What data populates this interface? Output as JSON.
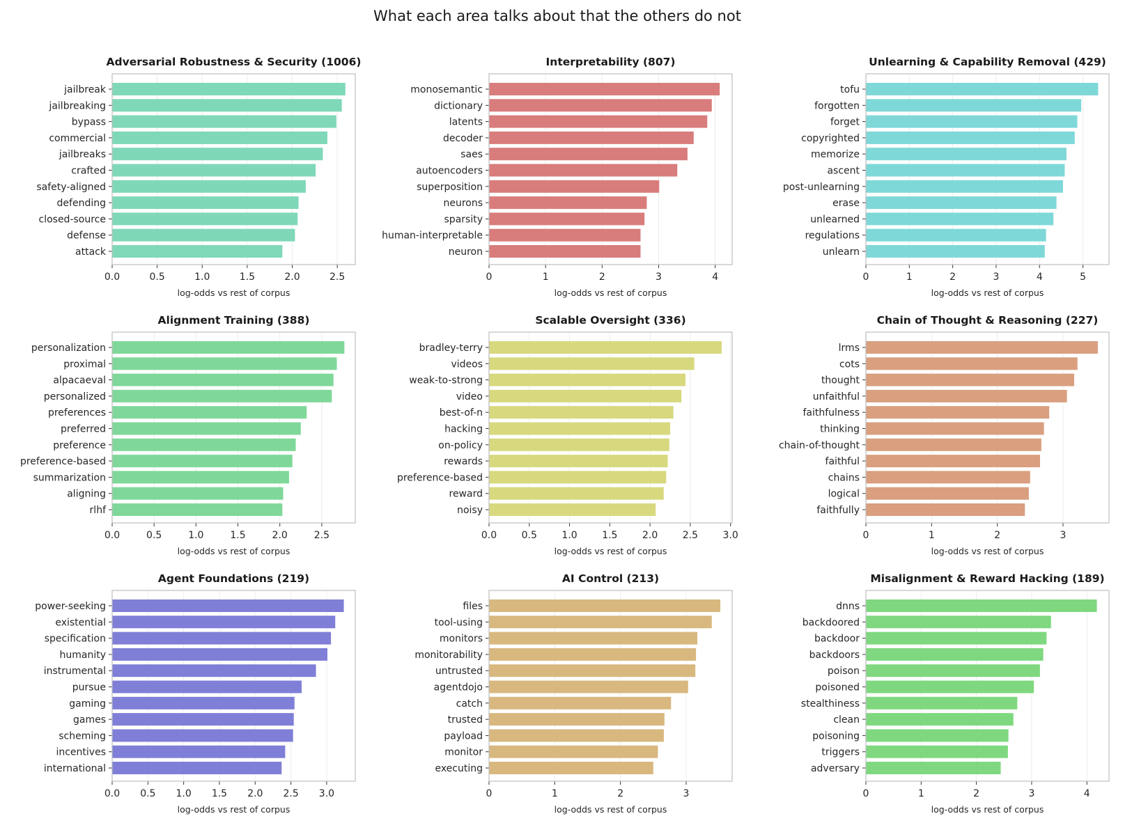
{
  "suptitle": "What each area talks about that the others do not",
  "chart_data": [
    {
      "type": "bar",
      "orientation": "horizontal",
      "title": "Adversarial Robustness & Security  (1006)",
      "xlabel": "log-odds vs rest of corpus",
      "color": "#7fd8b8",
      "xlim": [
        0,
        2.7
      ],
      "xticks": [
        0.0,
        0.5,
        1.0,
        1.5,
        2.0,
        2.5
      ],
      "tick_format": "0.0",
      "categories": [
        "jailbreak",
        "jailbreaking",
        "bypass",
        "commercial",
        "jailbreaks",
        "crafted",
        "safety-aligned",
        "defending",
        "closed-source",
        "defense",
        "attack"
      ],
      "values": [
        2.59,
        2.55,
        2.49,
        2.39,
        2.34,
        2.26,
        2.15,
        2.07,
        2.06,
        2.03,
        1.89
      ]
    },
    {
      "type": "bar",
      "orientation": "horizontal",
      "title": "Interpretability  (807)",
      "xlabel": "log-odds vs rest of corpus",
      "color": "#d97c7c",
      "xlim": [
        0,
        4.3
      ],
      "xticks": [
        0,
        1,
        2,
        3,
        4
      ],
      "tick_format": "0",
      "categories": [
        "monosemantic",
        "dictionary",
        "latents",
        "decoder",
        "saes",
        "autoencoders",
        "superposition",
        "neurons",
        "sparsity",
        "human-interpretable",
        "neuron"
      ],
      "values": [
        4.08,
        3.94,
        3.86,
        3.62,
        3.51,
        3.33,
        3.01,
        2.79,
        2.75,
        2.68,
        2.68
      ]
    },
    {
      "type": "bar",
      "orientation": "horizontal",
      "title": "Unlearning & Capability Removal  (429)",
      "xlabel": "log-odds vs rest of corpus",
      "color": "#7fd8d8",
      "xlim": [
        0,
        5.6
      ],
      "xticks": [
        0,
        1,
        2,
        3,
        4,
        5
      ],
      "tick_format": "0",
      "categories": [
        "tofu",
        "forgotten",
        "forget",
        "copyrighted",
        "memorize",
        "ascent",
        "post-unlearning",
        "erase",
        "unlearned",
        "regulations",
        "unlearn"
      ],
      "values": [
        5.35,
        4.96,
        4.87,
        4.81,
        4.62,
        4.58,
        4.54,
        4.39,
        4.32,
        4.15,
        4.12
      ]
    },
    {
      "type": "bar",
      "orientation": "horizontal",
      "title": "Alignment Training  (388)",
      "xlabel": "log-odds vs rest of corpus",
      "color": "#7fd89a",
      "xlim": [
        0,
        2.9
      ],
      "xticks": [
        0.0,
        0.5,
        1.0,
        1.5,
        2.0,
        2.5
      ],
      "tick_format": "0.0",
      "categories": [
        "personalization",
        "proximal",
        "alpacaeval",
        "personalized",
        "preferences",
        "preferred",
        "preference",
        "preference-based",
        "summarization",
        "aligning",
        "rlhf"
      ],
      "values": [
        2.77,
        2.68,
        2.64,
        2.62,
        2.32,
        2.25,
        2.19,
        2.15,
        2.11,
        2.04,
        2.03
      ]
    },
    {
      "type": "bar",
      "orientation": "horizontal",
      "title": "Scalable Oversight  (336)",
      "xlabel": "log-odds vs rest of corpus",
      "color": "#d8d87f",
      "xlim": [
        0,
        3.02
      ],
      "xticks": [
        0.0,
        0.5,
        1.0,
        1.5,
        2.0,
        2.5,
        3.0
      ],
      "tick_format": "0.0",
      "categories": [
        "bradley-terry",
        "videos",
        "weak-to-strong",
        "video",
        "best-of-n",
        "hacking",
        "on-policy",
        "rewards",
        "preference-based",
        "reward",
        "noisy"
      ],
      "values": [
        2.89,
        2.55,
        2.44,
        2.39,
        2.29,
        2.25,
        2.24,
        2.22,
        2.2,
        2.17,
        2.07
      ]
    },
    {
      "type": "bar",
      "orientation": "horizontal",
      "title": "Chain of Thought & Reasoning  (227)",
      "xlabel": "log-odds vs rest of corpus",
      "color": "#d99f7f",
      "xlim": [
        0,
        3.7
      ],
      "xticks": [
        0,
        1,
        2,
        3
      ],
      "tick_format": "0",
      "categories": [
        "lrms",
        "cots",
        "thought",
        "unfaithful",
        "faithfulness",
        "thinking",
        "chain-of-thought",
        "faithful",
        "chains",
        "logical",
        "faithfully"
      ],
      "values": [
        3.53,
        3.22,
        3.17,
        3.06,
        2.79,
        2.71,
        2.67,
        2.65,
        2.5,
        2.48,
        2.42
      ]
    },
    {
      "type": "bar",
      "orientation": "horizontal",
      "title": "Agent Foundations  (219)",
      "xlabel": "log-odds vs rest of corpus",
      "color": "#7f7fd8",
      "xlim": [
        0,
        3.4
      ],
      "xticks": [
        0.0,
        0.5,
        1.0,
        1.5,
        2.0,
        2.5,
        3.0
      ],
      "tick_format": "0.0",
      "categories": [
        "power-seeking",
        "existential",
        "specification",
        "humanity",
        "instrumental",
        "pursue",
        "gaming",
        "games",
        "scheming",
        "incentives",
        "international"
      ],
      "values": [
        3.24,
        3.12,
        3.06,
        3.01,
        2.85,
        2.65,
        2.55,
        2.54,
        2.53,
        2.42,
        2.37
      ]
    },
    {
      "type": "bar",
      "orientation": "horizontal",
      "title": "AI Control  (213)",
      "xlabel": "log-odds vs rest of corpus",
      "color": "#d8b87f",
      "xlim": [
        0,
        3.7
      ],
      "xticks": [
        0,
        1,
        2,
        3
      ],
      "tick_format": "0",
      "categories": [
        "files",
        "tool-using",
        "monitors",
        "monitorability",
        "untrusted",
        "agentdojo",
        "catch",
        "trusted",
        "payload",
        "monitor",
        "executing"
      ],
      "values": [
        3.52,
        3.39,
        3.17,
        3.15,
        3.14,
        3.03,
        2.77,
        2.67,
        2.66,
        2.57,
        2.5
      ]
    },
    {
      "type": "bar",
      "orientation": "horizontal",
      "title": "Misalignment & Reward Hacking  (189)",
      "xlabel": "log-odds vs rest of corpus",
      "color": "#7fd87f",
      "xlim": [
        0,
        4.4
      ],
      "xticks": [
        0,
        1,
        2,
        3,
        4
      ],
      "tick_format": "0",
      "categories": [
        "dnns",
        "backdoored",
        "backdoor",
        "backdoors",
        "poison",
        "poisoned",
        "stealthiness",
        "clean",
        "poisoning",
        "triggers",
        "adversary"
      ],
      "values": [
        4.18,
        3.35,
        3.27,
        3.21,
        3.15,
        3.04,
        2.74,
        2.67,
        2.58,
        2.57,
        2.44
      ]
    }
  ]
}
